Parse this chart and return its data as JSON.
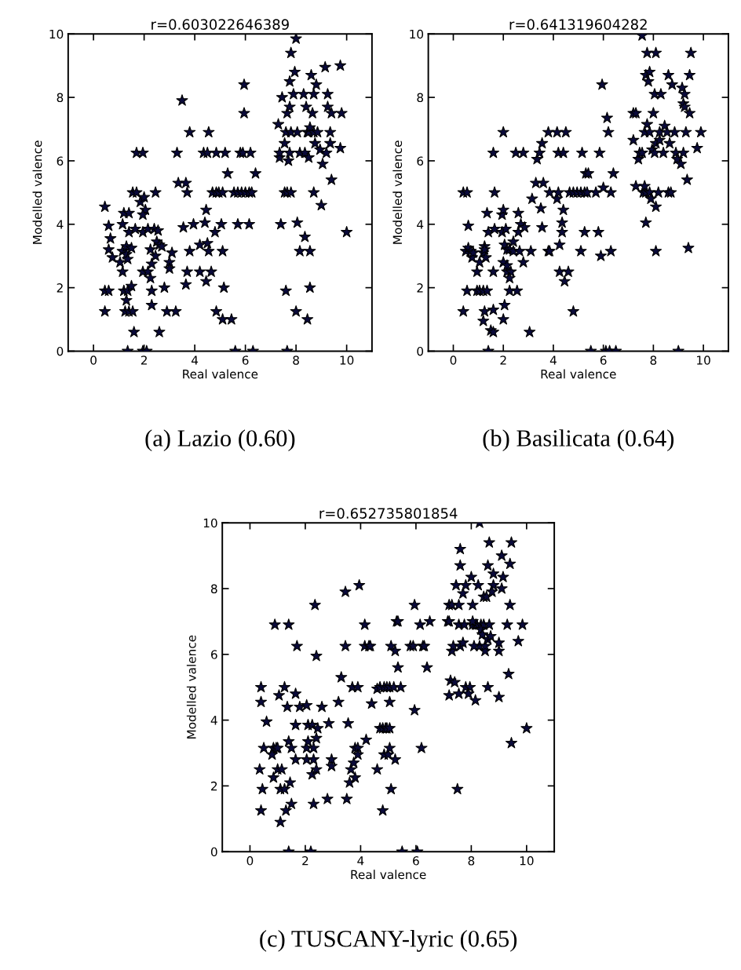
{
  "chart_data": [
    {
      "type": "scatter",
      "title": "r=0.603022646389",
      "xlabel": "Real valence",
      "ylabel": "Modelled valence",
      "marker": "star",
      "color": "#0a0a3a",
      "xlim": [
        -1,
        11
      ],
      "ylim": [
        0,
        10
      ],
      "xticks": [
        0,
        2,
        4,
        6,
        8,
        10
      ],
      "yticks": [
        0,
        2,
        4,
        6,
        8,
        10
      ],
      "annotations": [
        "(a) Lazio (0.60)"
      ],
      "x": [
        0.45,
        0.45,
        0.6,
        0.45,
        0.6,
        0.67,
        0.6,
        0.75,
        1.05,
        1.15,
        1.15,
        1.2,
        1.4,
        1.15,
        1.2,
        1.35,
        1.3,
        1.25,
        1.4,
        1.55,
        1.3,
        1.3,
        1.35,
        1.5,
        1.5,
        1.4,
        1.65,
        1.6,
        1.55,
        1.7,
        1.7,
        1.95,
        1.85,
        2.0,
        2.05,
        1.95,
        1.95,
        2.15,
        1.95,
        2.15,
        2.25,
        2.25,
        2.3,
        2.3,
        2.3,
        2.4,
        2.55,
        2.45,
        2.45,
        2.5,
        2.6,
        2.7,
        2.8,
        2.6,
        3.0,
        3.0,
        3.1,
        2.9,
        3.25,
        3.3,
        3.5,
        3.35,
        3.65,
        3.7,
        3.8,
        3.55,
        3.7,
        3.65,
        3.8,
        3.95,
        4.2,
        4.2,
        4.35,
        4.5,
        4.55,
        4.4,
        4.45,
        4.45,
        4.5,
        4.55,
        4.65,
        4.7,
        4.8,
        4.85,
        4.95,
        5.1,
        4.85,
        5.2,
        4.85,
        5.05,
        5.1,
        5.1,
        5.15,
        5.3,
        5.45,
        5.55,
        5.7,
        5.85,
        6.0,
        6.15,
        6.25,
        5.6,
        5.7,
        5.8,
        5.9,
        5.95,
        5.95,
        6.15,
        6.2,
        6.3,
        6.4,
        1.35,
        1.95,
        2.1,
        7.3,
        7.35,
        7.35,
        7.45,
        7.4,
        7.55,
        7.6,
        7.65,
        7.7,
        7.75,
        7.75,
        7.65,
        7.6,
        7.55,
        7.65,
        7.8,
        7.8,
        8.0,
        7.95,
        7.9,
        7.75,
        7.8,
        8.05,
        8.05,
        8.0,
        8.15,
        8.35,
        8.15,
        8.3,
        8.4,
        8.45,
        8.5,
        8.55,
        8.5,
        8.6,
        8.7,
        8.65,
        8.7,
        8.8,
        8.75,
        8.7,
        8.85,
        8.35,
        8.55,
        8.55,
        8.45,
        8.95,
        9.05,
        9.0,
        9.15,
        9.25,
        9.25,
        9.2,
        9.35,
        9.35,
        9.4,
        9.4,
        9.75,
        9.8,
        9.75,
        10.0
      ],
      "values": [
        4.55,
        1.9,
        1.9,
        1.25,
        3.95,
        3.55,
        3.2,
        2.95,
        2.8,
        3.15,
        4.0,
        4.35,
        4.35,
        2.5,
        1.9,
        1.9,
        1.6,
        1.25,
        1.25,
        1.25,
        3.3,
        3.05,
        2.9,
        3.25,
        2.05,
        3.75,
        3.85,
        0.6,
        5.0,
        5.0,
        6.25,
        6.25,
        4.7,
        4.85,
        4.45,
        4.3,
        3.75,
        3.85,
        2.5,
        2.5,
        2.3,
        3.2,
        2.75,
        1.9,
        1.45,
        3.85,
        3.8,
        5.0,
        3.0,
        3.45,
        3.35,
        3.3,
        2.0,
        0.6,
        2.8,
        2.6,
        3.1,
        1.25,
        1.25,
        6.25,
        7.9,
        5.3,
        5.3,
        5.0,
        6.9,
        3.9,
        2.5,
        2.1,
        3.15,
        4.0,
        2.5,
        3.35,
        6.25,
        6.25,
        6.9,
        4.05,
        4.45,
        2.2,
        3.4,
        3.15,
        2.5,
        5.0,
        3.75,
        5.0,
        5.0,
        5.0,
        6.25,
        6.25,
        1.25,
        4.0,
        3.15,
        1.0,
        2.0,
        5.6,
        1.0,
        5.0,
        5.0,
        5.0,
        5.0,
        5.0,
        5.0,
        0,
        4.0,
        6.25,
        6.25,
        8.4,
        7.5,
        4.0,
        6.25,
        0,
        5.6,
        0,
        0,
        0,
        7.15,
        6.1,
        6.25,
        8.0,
        4.0,
        6.55,
        6.9,
        7.5,
        6.0,
        8.5,
        7.7,
        0,
        1.9,
        5.0,
        5.0,
        5.0,
        9.4,
        9.85,
        8.8,
        8.1,
        6.25,
        6.9,
        6.9,
        4.05,
        1.25,
        6.25,
        6.25,
        3.15,
        8.1,
        7.7,
        6.9,
        6.9,
        7.05,
        6.1,
        8.7,
        8.1,
        7.5,
        5.0,
        8.4,
        6.55,
        6.9,
        6.9,
        3.6,
        3.15,
        2.0,
        1.0,
        6.35,
        5.9,
        4.6,
        8.95,
        8.1,
        7.7,
        6.25,
        6.55,
        6.9,
        7.5,
        5.4,
        9.0,
        7.5,
        6.4,
        3.75
      ]
    },
    {
      "type": "scatter",
      "title": "r=0.641319604282",
      "xlabel": "Real valence",
      "ylabel": "Modelled valence",
      "marker": "star",
      "color": "#0a0a3a",
      "xlim": [
        -1,
        11
      ],
      "ylim": [
        0,
        10
      ],
      "xticks": [
        0,
        2,
        4,
        6,
        8,
        10
      ],
      "yticks": [
        0,
        2,
        4,
        6,
        8,
        10
      ],
      "annotations": [
        "(b) Basilicata (0.64)"
      ],
      "x": [
        0.4,
        0.55,
        0.4,
        0.5,
        0.6,
        0.6,
        0.7,
        0.55,
        0.75,
        0.8,
        0.95,
        1.05,
        1.2,
        1.35,
        0.95,
        1.05,
        1.2,
        1.25,
        1.25,
        1.2,
        1.25,
        1.3,
        1.4,
        1.35,
        1.4,
        1.5,
        1.6,
        1.6,
        1.6,
        1.6,
        1.65,
        1.65,
        2.0,
        1.95,
        2.0,
        1.95,
        2.1,
        2.05,
        2.15,
        2.0,
        2.0,
        2.05,
        2.15,
        2.3,
        2.15,
        2.25,
        2.4,
        2.25,
        2.55,
        2.25,
        2.4,
        2.5,
        2.8,
        2.6,
        2.6,
        2.65,
        2.7,
        2.8,
        2.85,
        3.1,
        3.05,
        3.15,
        3.3,
        3.6,
        3.35,
        3.45,
        3.5,
        3.55,
        3.55,
        3.8,
        4.15,
        4.5,
        3.8,
        3.85,
        3.85,
        4.2,
        4.4,
        4.15,
        4.2,
        4.25,
        4.25,
        4.35,
        4.35,
        4.4,
        4.45,
        4.6,
        4.65,
        4.8,
        4.95,
        5.1,
        5.25,
        5.35,
        4.8,
        5.1,
        5.15,
        5.25,
        5.3,
        5.4,
        5.5,
        5.7,
        5.8,
        5.85,
        5.95,
        5.9,
        6.0,
        6.1,
        6.25,
        6.5,
        6.15,
        6.2,
        6.3,
        6.3,
        6.4,
        7.2,
        7.3,
        7.2,
        7.3,
        7.4,
        7.45,
        7.55,
        7.55,
        7.65,
        7.6,
        7.7,
        7.85,
        7.65,
        7.7,
        7.7,
        7.75,
        7.75,
        7.8,
        7.85,
        7.85,
        7.9,
        7.95,
        8.0,
        8.05,
        8.3,
        8.1,
        8.05,
        8.1,
        8.25,
        8.1,
        8.1,
        8.2,
        8.25,
        8.4,
        8.45,
        8.6,
        8.55,
        8.65,
        8.6,
        8.7,
        8.75,
        8.85,
        8.9,
        8.95,
        9.0,
        9.1,
        9.15,
        9.25,
        9.2,
        9.25,
        9.2,
        9.3,
        9.35,
        9.45,
        9.45,
        9.5,
        9.4,
        9.75,
        9.9
      ],
      "values": [
        5.0,
        5.0,
        1.25,
        3.15,
        3.95,
        3.25,
        3.15,
        1.9,
        2.95,
        3.1,
        1.9,
        1.9,
        1.9,
        1.9,
        2.5,
        2.8,
        3.1,
        3.3,
        1.25,
        0.95,
        3.2,
        2.95,
        3.75,
        4.35,
        0,
        0.65,
        0.6,
        2.5,
        6.25,
        1.3,
        3.85,
        5.0,
        6.9,
        4.3,
        4.45,
        3.75,
        3.85,
        3.35,
        3.2,
        2.8,
        1.0,
        1.45,
        2.5,
        2.5,
        2.7,
        3.2,
        3.15,
        1.9,
        1.9,
        2.3,
        3.45,
        6.25,
        6.25,
        4.35,
        3.75,
        3.15,
        4.0,
        2.8,
        3.9,
        3.15,
        0.6,
        4.8,
        5.3,
        5.3,
        6.05,
        6.25,
        4.5,
        6.55,
        3.9,
        6.9,
        6.9,
        6.9,
        3.15,
        3.15,
        5.0,
        6.25,
        6.25,
        4.8,
        5.0,
        3.35,
        2.5,
        4.05,
        3.75,
        4.45,
        2.2,
        2.5,
        5.0,
        5.0,
        5.0,
        5.0,
        5.0,
        5.0,
        1.25,
        3.15,
        6.25,
        3.75,
        5.6,
        5.6,
        0,
        5.0,
        3.75,
        6.25,
        8.4,
        3.0,
        5.15,
        0,
        0,
        0,
        7.35,
        6.9,
        3.15,
        5.0,
        5.6,
        7.5,
        7.5,
        6.65,
        5.2,
        6.05,
        6.25,
        6.25,
        9.95,
        6.9,
        5.0,
        5.0,
        5.0,
        5.2,
        4.05,
        8.7,
        9.4,
        7.15,
        8.5,
        8.8,
        6.9,
        4.8,
        6.35,
        7.5,
        8.1,
        8.1,
        9.4,
        6.25,
        6.55,
        6.65,
        3.15,
        4.55,
        5.0,
        6.9,
        6.25,
        7.1,
        8.7,
        6.9,
        6.55,
        5.0,
        5.0,
        8.4,
        6.9,
        6.25,
        6.05,
        0,
        5.9,
        8.3,
        8.1,
        7.8,
        7.7,
        6.25,
        6.9,
        5.4,
        7.5,
        8.7,
        9.4,
        3.25,
        6.4,
        6.9
      ]
    },
    {
      "type": "scatter",
      "title": "r=0.652735801854",
      "xlabel": "Real valence",
      "ylabel": "Modelled valence",
      "marker": "star",
      "color": "#0a0a3a",
      "xlim": [
        -1,
        11
      ],
      "ylim": [
        0,
        10
      ],
      "xticks": [
        0,
        2,
        4,
        6,
        8,
        10
      ],
      "yticks": [
        0,
        2,
        4,
        6,
        8,
        10
      ],
      "annotations": [
        "(c) TUSCANY-lyric (0.65)"
      ],
      "x": [
        0.35,
        0.4,
        0.4,
        0.45,
        0.4,
        0.5,
        0.85,
        0.95,
        1.0,
        0.6,
        0.8,
        0.85,
        0.9,
        1.4,
        1.0,
        1.15,
        1.05,
        1.1,
        1.1,
        1.25,
        1.25,
        1.3,
        1.35,
        1.4,
        1.45,
        1.5,
        1.4,
        1.5,
        1.65,
        1.65,
        1.65,
        1.7,
        1.8,
        2.05,
        2.3,
        2.05,
        2.1,
        2.25,
        2.1,
        2.05,
        2.3,
        2.2,
        2.25,
        2.3,
        2.35,
        2.4,
        2.4,
        2.4,
        2.45,
        2.6,
        2.8,
        2.85,
        2.95,
        2.95,
        3.2,
        3.3,
        3.45,
        3.45,
        3.5,
        3.55,
        3.6,
        3.65,
        3.7,
        3.9,
        3.75,
        3.8,
        3.8,
        3.9,
        3.9,
        3.95,
        4.15,
        4.15,
        4.3,
        4.35,
        4.2,
        4.4,
        4.6,
        4.6,
        4.7,
        4.8,
        4.9,
        4.95,
        5.05,
        4.7,
        4.85,
        4.95,
        5.05,
        5.2,
        4.8,
        4.85,
        5.0,
        5.05,
        5.05,
        5.1,
        5.1,
        5.25,
        5.25,
        5.3,
        5.35,
        5.35,
        5.45,
        5.5,
        5.8,
        5.9,
        5.95,
        5.95,
        6.05,
        6.15,
        6.25,
        6.3,
        6.2,
        6.4,
        6.5,
        7.15,
        7.2,
        7.2,
        7.3,
        7.2,
        7.25,
        7.3,
        7.35,
        7.4,
        7.45,
        7.5,
        7.55,
        7.55,
        7.55,
        7.6,
        7.6,
        7.6,
        7.7,
        7.7,
        7.75,
        7.8,
        7.95,
        7.8,
        7.9,
        8.0,
        8.05,
        8.05,
        8.15,
        8.2,
        8.05,
        8.3,
        8.1,
        8.15,
        8.25,
        8.3,
        8.35,
        8.45,
        8.35,
        8.4,
        8.45,
        8.55,
        8.5,
        8.5,
        8.6,
        8.6,
        8.6,
        8.65,
        8.7,
        8.65,
        8.8,
        8.8,
        8.75,
        9.0,
        9.0,
        9.0,
        9.1,
        9.15,
        9.1,
        9.3,
        9.35,
        9.4,
        9.45,
        9.4,
        9.45,
        9.7,
        9.85,
        10.0
      ],
      "values": [
        2.5,
        4.55,
        5.0,
        1.9,
        1.25,
        3.15,
        3.15,
        3.15,
        3.15,
        3.95,
        2.95,
        2.25,
        6.9,
        6.9,
        2.5,
        2.5,
        4.75,
        0.9,
        1.9,
        1.9,
        5.0,
        1.25,
        4.4,
        3.35,
        2.1,
        3.15,
        0,
        1.45,
        4.8,
        3.85,
        2.8,
        6.25,
        4.4,
        3.15,
        3.15,
        4.45,
        3.85,
        3.85,
        3.35,
        2.8,
        2.8,
        0,
        2.35,
        1.45,
        7.5,
        5.95,
        3.45,
        2.5,
        3.75,
        4.4,
        1.6,
        3.9,
        2.6,
        2.8,
        4.55,
        5.3,
        7.9,
        6.25,
        1.6,
        3.9,
        2.1,
        2.5,
        5.0,
        5.0,
        2.7,
        2.25,
        3.15,
        3.15,
        2.95,
        8.1,
        6.9,
        6.25,
        6.25,
        6.25,
        3.4,
        4.5,
        2.5,
        4.95,
        3.75,
        3.75,
        3.75,
        3.75,
        3.75,
        5.0,
        5.0,
        5.0,
        5.0,
        5.0,
        1.25,
        2.95,
        2.95,
        3.15,
        4.55,
        1.9,
        6.25,
        6.1,
        2.8,
        7.0,
        7.0,
        5.6,
        5.0,
        0,
        6.25,
        6.25,
        7.5,
        4.3,
        0,
        6.9,
        6.25,
        6.25,
        3.15,
        5.6,
        7.0,
        7.0,
        7.0,
        7.5,
        7.5,
        4.75,
        5.2,
        6.1,
        6.25,
        5.15,
        8.1,
        1.9,
        7.5,
        4.8,
        6.9,
        8.7,
        9.2,
        6.25,
        7.85,
        6.35,
        6.9,
        5.0,
        5.0,
        8.1,
        4.8,
        8.35,
        7.5,
        6.9,
        6.9,
        6.9,
        7.0,
        6.25,
        6.25,
        4.6,
        8.1,
        10.0,
        6.9,
        6.9,
        6.75,
        6.6,
        7.75,
        7.75,
        6.1,
        6.25,
        8.7,
        6.45,
        5.0,
        6.9,
        6.55,
        9.4,
        8.45,
        8.1,
        7.9,
        6.1,
        6.35,
        4.7,
        9.0,
        8.35,
        8.0,
        6.9,
        5.4,
        8.75,
        9.4,
        7.5,
        3.3,
        6.4,
        6.9,
        3.75
      ]
    }
  ]
}
